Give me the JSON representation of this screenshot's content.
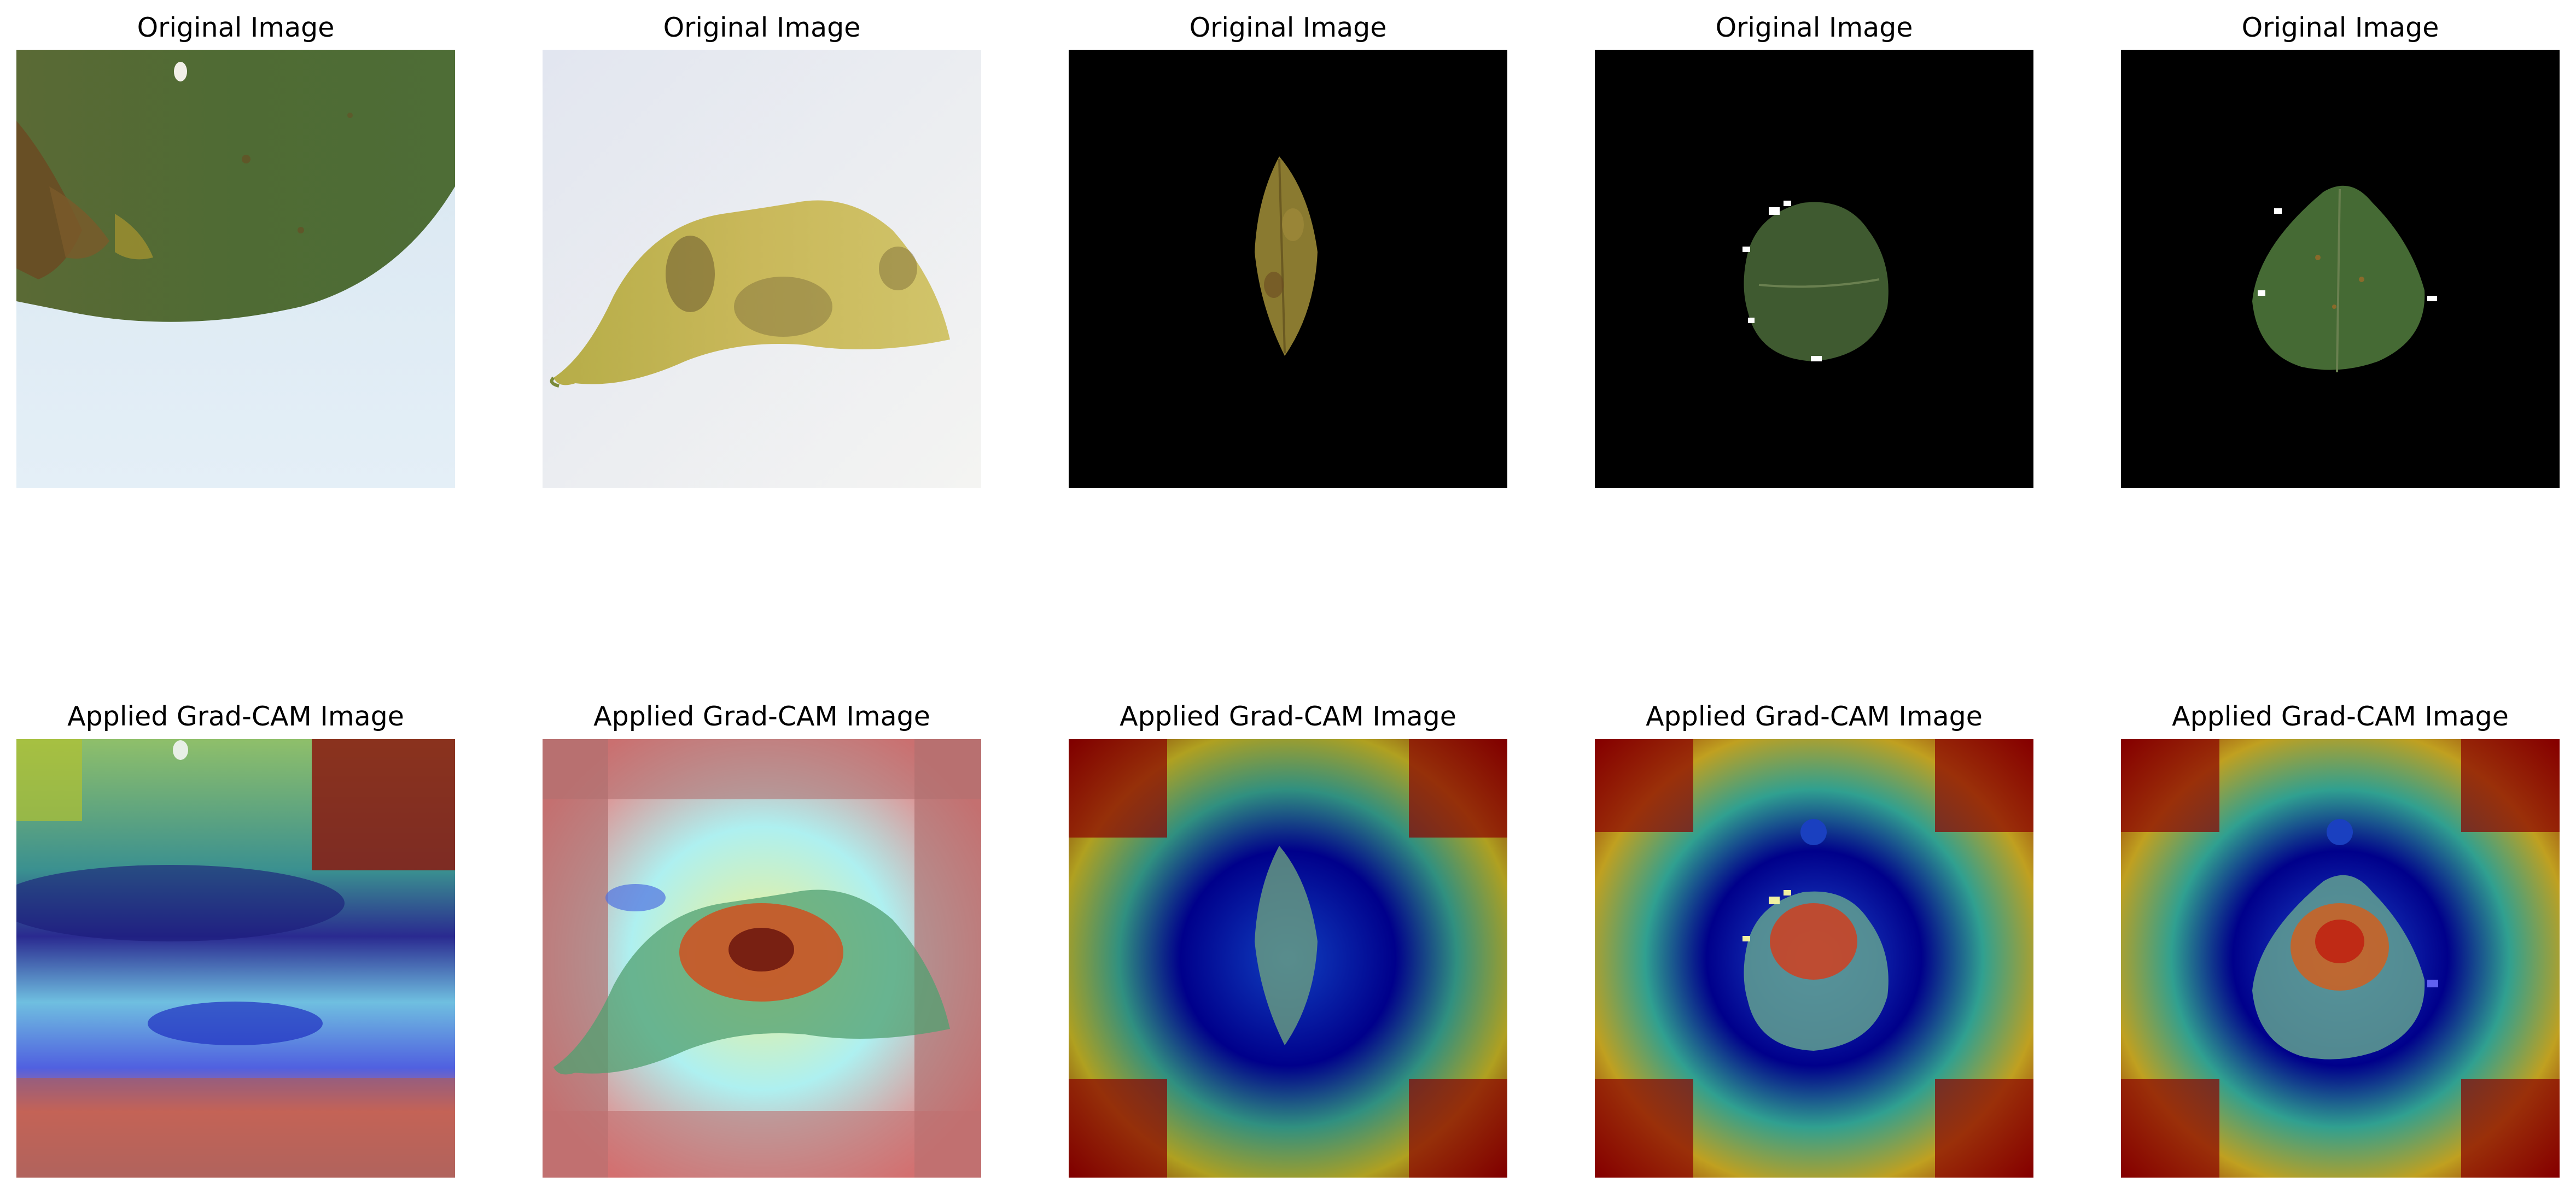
{
  "figure": {
    "rows": [
      {
        "title": "Original Image",
        "panels": [
          {
            "image": "soybean-leaf-closeup-with-brown-lesions"
          },
          {
            "image": "diseased-soybean-pod-on-white-background"
          },
          {
            "image": "small-dry-leaf-on-black-background"
          },
          {
            "image": "green-soybean-leaf-on-black-background"
          },
          {
            "image": "green-soybean-leaf-with-spots-on-black-background"
          }
        ]
      },
      {
        "title": "Applied Grad-CAM Image",
        "panels": [
          {
            "image": "grad-cam-heatmap-overlay-leaf-closeup"
          },
          {
            "image": "grad-cam-heatmap-overlay-pod"
          },
          {
            "image": "grad-cam-heatmap-overlay-dry-leaf"
          },
          {
            "image": "grad-cam-heatmap-overlay-green-leaf"
          },
          {
            "image": "grad-cam-heatmap-overlay-spotted-leaf"
          }
        ]
      }
    ],
    "colors": {
      "heat_low": "#00008b",
      "heat_mid": "#00ffff",
      "heat_high": "#ff0000",
      "leaf_green": "#4a6b34",
      "lesion_brown": "#6b4a22",
      "pod_yellow": "#c9b85a"
    }
  }
}
